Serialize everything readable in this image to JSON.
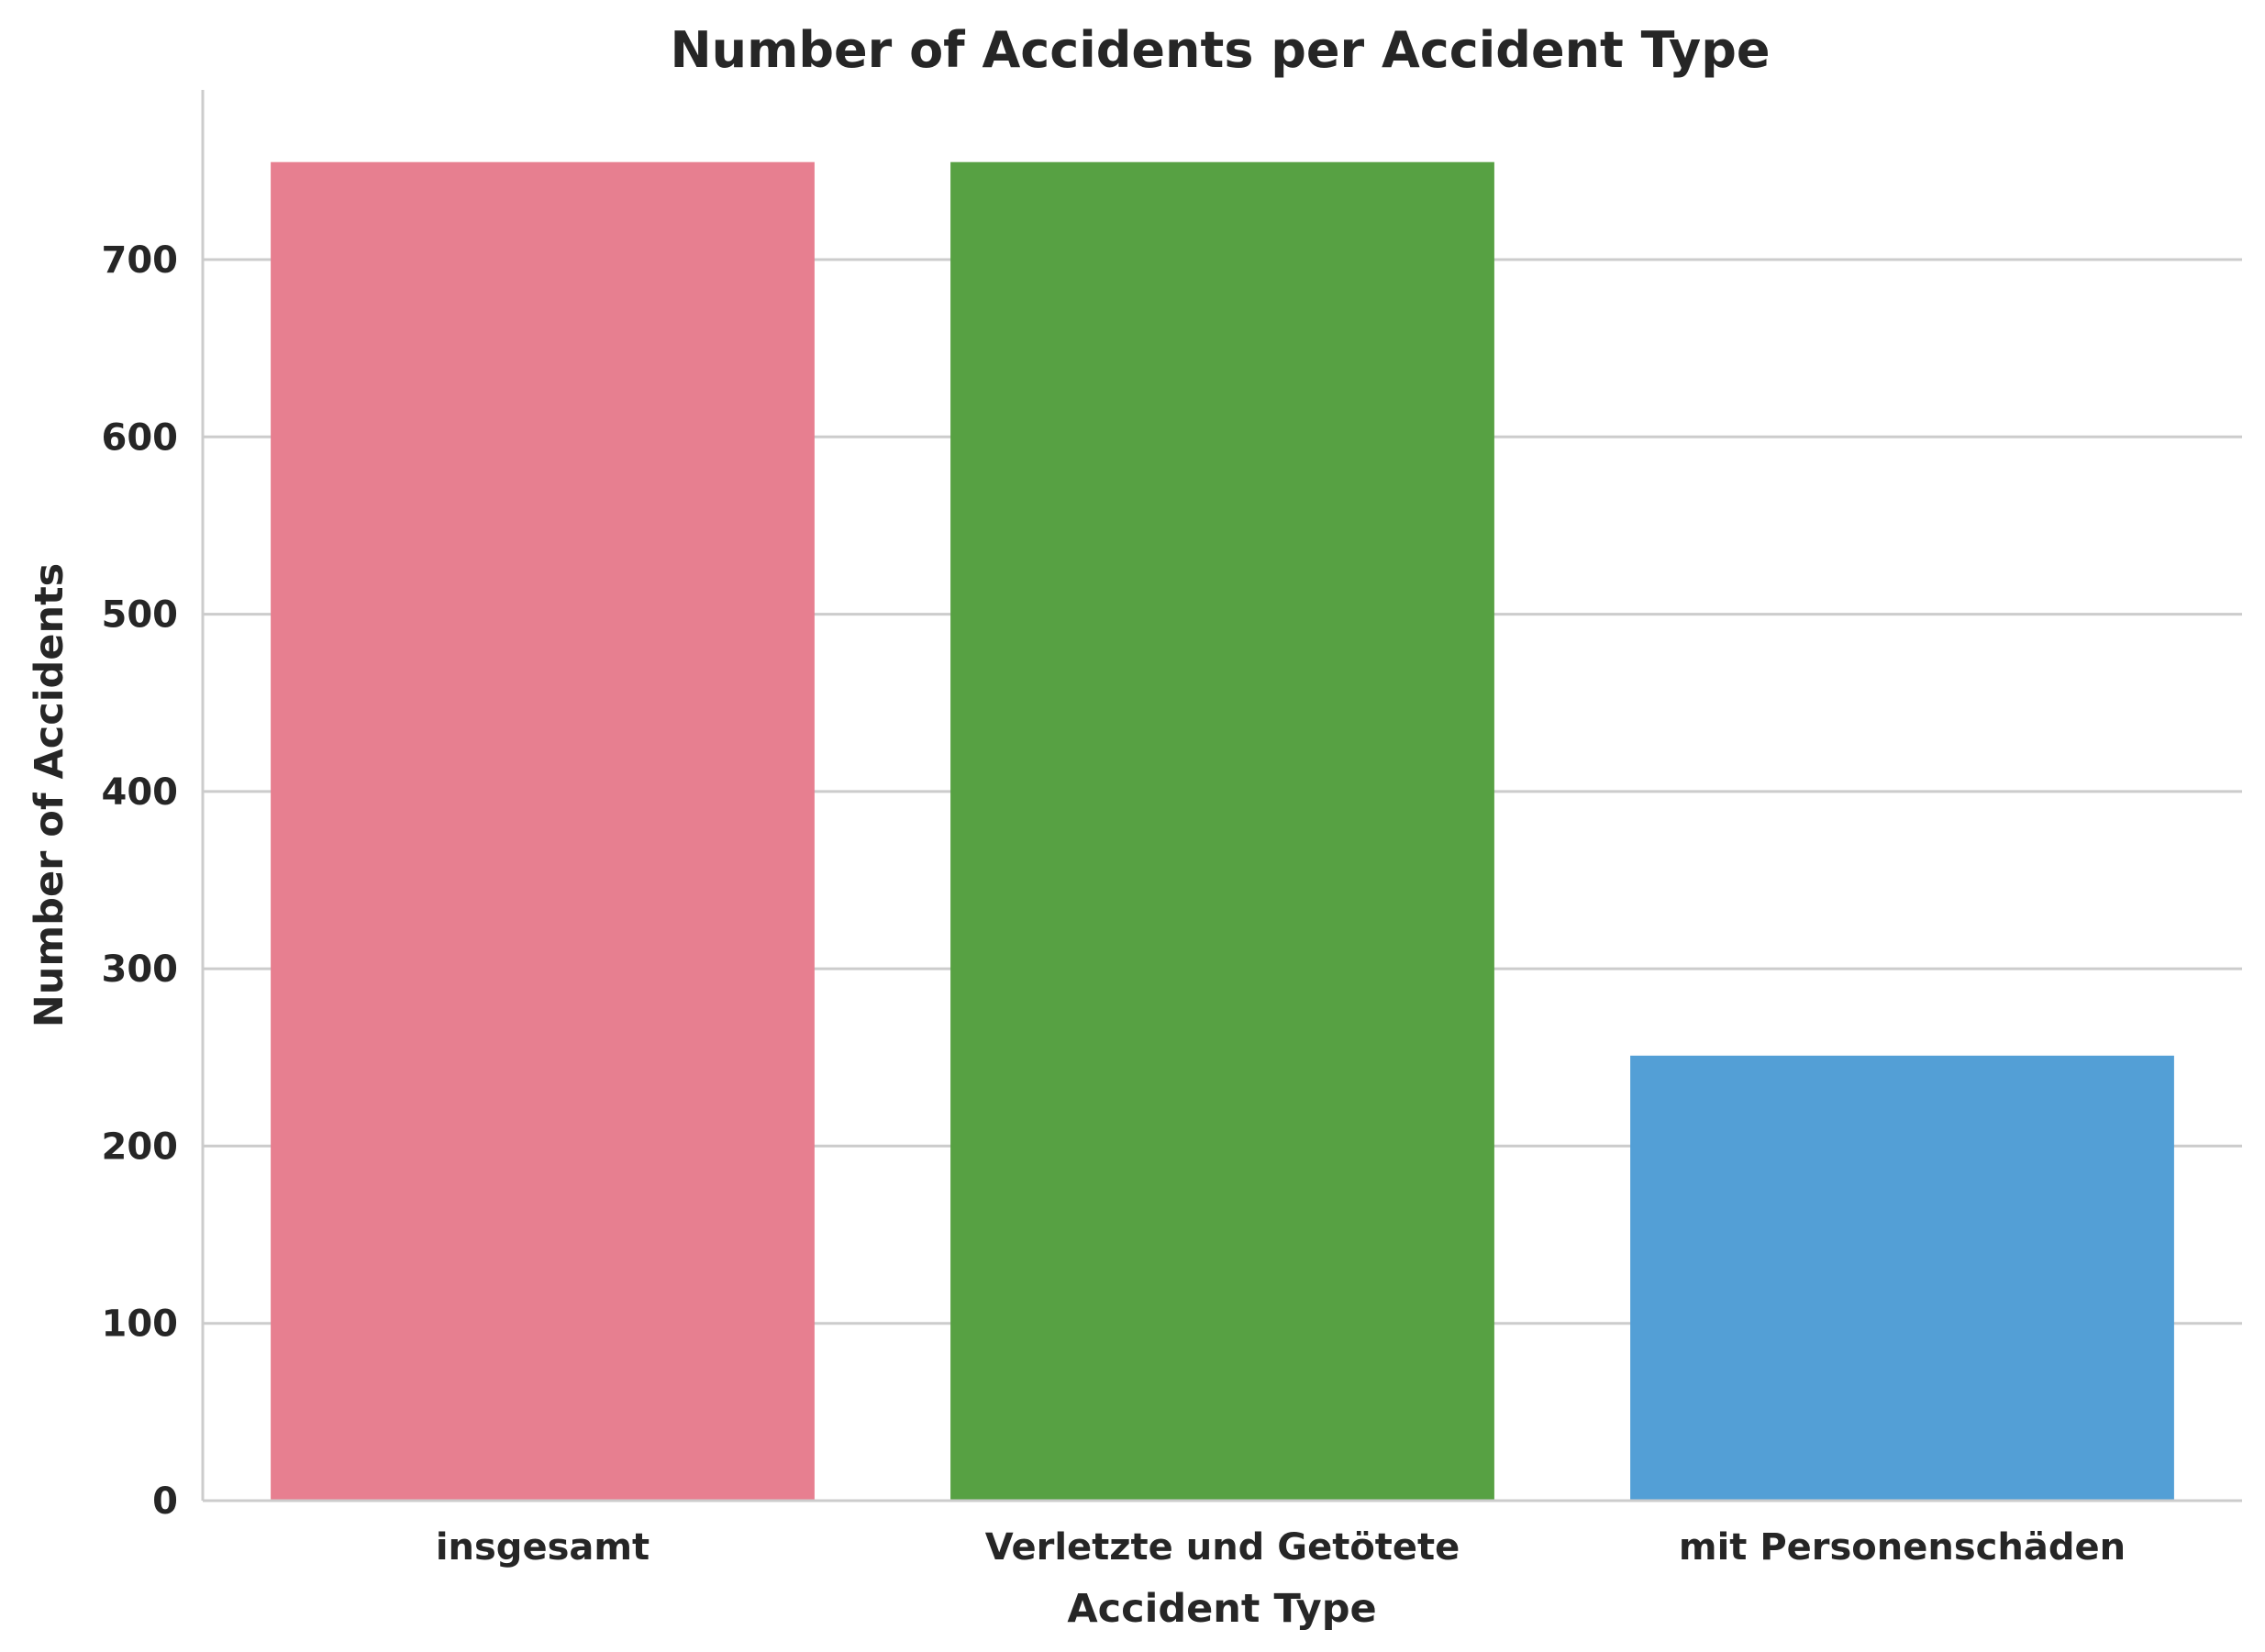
{
  "chart_data": {
    "type": "bar",
    "title": "Number of Accidents per Accident Type",
    "xlabel": "Accident Type",
    "ylabel": "Number of Accidents",
    "categories": [
      "insgesamt",
      "Verletzte und Getötete",
      "mit Personenschäden"
    ],
    "values": [
      755,
      755,
      251
    ],
    "colors": [
      "#e77f90",
      "#57a143",
      "#539fd6"
    ],
    "yticks": [
      0,
      100,
      200,
      300,
      400,
      500,
      600,
      700
    ],
    "ylim": [
      0,
      795
    ],
    "grid": "horizontal"
  }
}
